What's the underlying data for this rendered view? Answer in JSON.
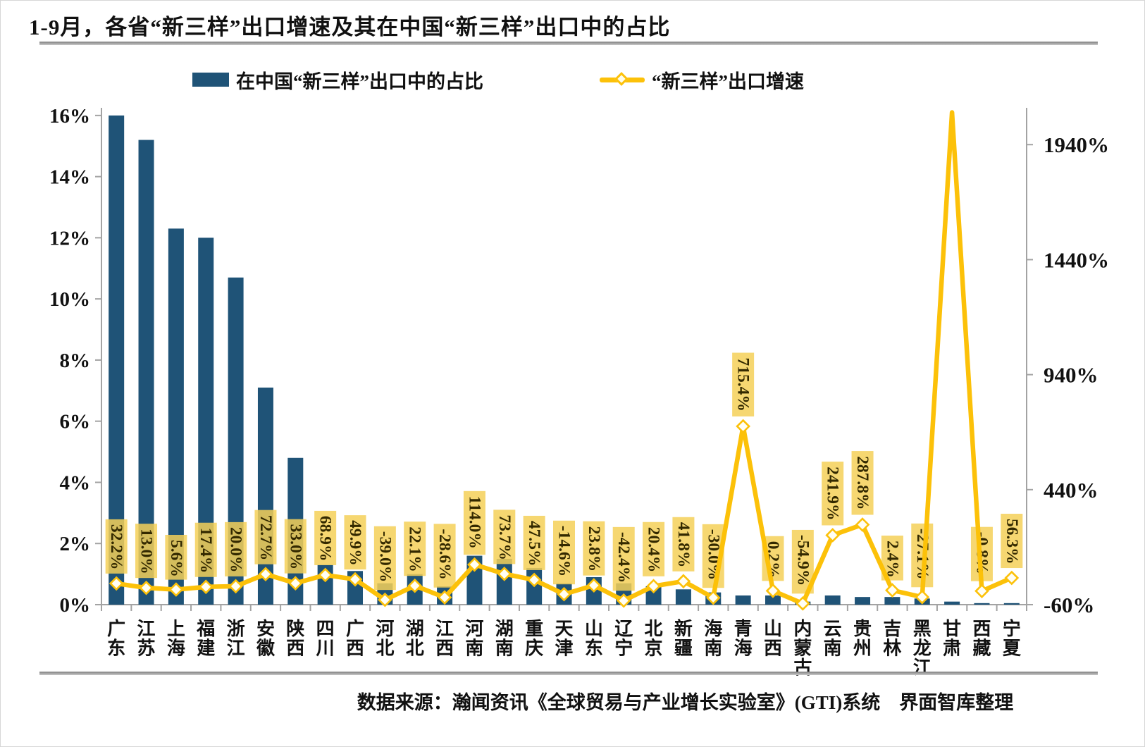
{
  "title": "1-9月，各省“新三样”出口增速及其在中国“新三样”出口中的占比",
  "legend": {
    "bar_label": "在中国“新三样”出口中的占比",
    "line_label": "“新三样”出口增速"
  },
  "footer": {
    "source": "数据来源：瀚闻资讯《全球贸易与产业增长实验室》(GTI)系统　界面智库整理"
  },
  "colors": {
    "bar": "#1F5377",
    "line": "#FCC109",
    "label_bg": "rgba(245,208,88,0.85)",
    "label_text": "#332900",
    "axis": "#A3A3A3",
    "text": "#111111"
  },
  "chart_data": {
    "type": "bar+line",
    "title": "1-9月，各省“新三样”出口增速及其在中国“新三样”出口中的占比",
    "categories": [
      "广东",
      "江苏",
      "上海",
      "福建",
      "浙江",
      "安徽",
      "陕西",
      "四川",
      "广西",
      "河北",
      "湖北",
      "江西",
      "河南",
      "湖南",
      "重庆",
      "天津",
      "山东",
      "辽宁",
      "北京",
      "新疆",
      "海南",
      "青海",
      "山西",
      "内蒙古",
      "云南",
      "贵州",
      "吉林",
      "黑龙江",
      "甘肃",
      "西藏",
      "宁夏"
    ],
    "series": [
      {
        "name": "在中国“新三样”出口中的占比",
        "type": "bar",
        "axis": "left",
        "unit": "%",
        "values": [
          16.0,
          15.2,
          12.3,
          12.0,
          10.7,
          7.1,
          4.8,
          1.3,
          1.1,
          0.7,
          1.0,
          0.6,
          1.6,
          1.5,
          1.2,
          0.7,
          0.9,
          0.7,
          0.6,
          0.5,
          0.4,
          0.3,
          0.3,
          0.1,
          0.3,
          0.25,
          0.25,
          0.2,
          0.1,
          0.05,
          0.05
        ]
      },
      {
        "name": "“新三样”出口增速",
        "type": "line",
        "axis": "right",
        "unit": "%",
        "values": [
          32.2,
          13.0,
          5.6,
          17.4,
          20.0,
          72.7,
          33.0,
          68.9,
          49.9,
          -39.0,
          22.1,
          -28.6,
          114.0,
          73.7,
          47.5,
          -14.6,
          23.8,
          -42.4,
          20.4,
          41.8,
          -30.0,
          715.4,
          0.2,
          -54.9,
          241.9,
          287.8,
          2.4,
          -27.1,
          2080,
          -0.8,
          56.3
        ],
        "labels": [
          "32.2%",
          "13.0%",
          "5.6%",
          "17.4%",
          "20.0%",
          "72.7%",
          "33.0%",
          "68.9%",
          "49.9%",
          "-39.0%",
          "22.1%",
          "-28.6%",
          "114.0%",
          "73.7%",
          "47.5%",
          "-14.6%",
          "23.8%",
          "-42.4%",
          "20.4%",
          "41.8%",
          "-30.0%",
          "715.4%",
          "0.2%",
          "-54.9%",
          "241.9%",
          "287.8%",
          "2.4%",
          "-27.1%",
          "",
          "-0.8%",
          "56.3%"
        ]
      }
    ],
    "left_axis": {
      "ticks": [
        "16%",
        "14%",
        "12%",
        "10%",
        "8%",
        "6%",
        "4%",
        "2%",
        "0%"
      ],
      "min": 0,
      "max": 16.25
    },
    "right_axis": {
      "ticks": [
        "1940%",
        "1440%",
        "940%",
        "440%",
        "-60%"
      ],
      "min": -60,
      "max": 2100
    },
    "grid": false,
    "legend_position": "top",
    "note_gansu_peak_clipped": "甘肃 line value exceeds right axis top; no data label shown in chart"
  }
}
